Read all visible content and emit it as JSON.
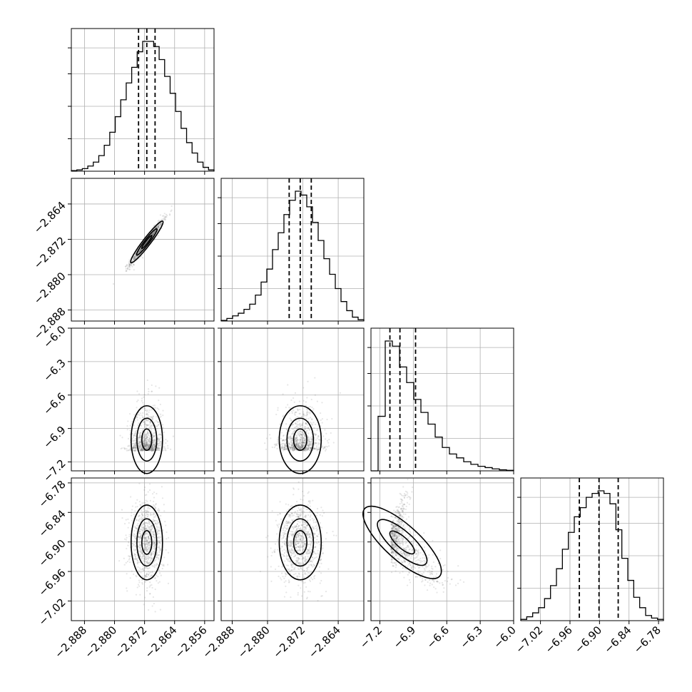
{
  "chart_data": {
    "type": "corner",
    "n_params": 4,
    "title": "",
    "parameters": [
      {
        "name": "",
        "range": [
          -2.8915,
          -2.8535
        ],
        "ticks": [
          -2.888,
          -2.88,
          -2.872,
          -2.864,
          -2.856
        ],
        "tick_labels": [
          "−2.888",
          "−2.880",
          "−2.872",
          "−2.864",
          "−2.856"
        ],
        "quantiles": [
          -2.8736,
          -2.8714,
          -2.8692
        ]
      },
      {
        "name": "",
        "range": [
          -2.8905,
          -2.8582
        ],
        "ticks": [
          -2.888,
          -2.88,
          -2.872,
          -2.864
        ],
        "tick_labels": [
          "−2.888",
          "−2.880",
          "−2.872",
          "−2.864"
        ],
        "quantiles": [
          -2.8751,
          -2.8726,
          -2.8701
        ]
      },
      {
        "name": "",
        "range": [
          -7.28,
          -6.0
        ],
        "ticks": [
          -7.2,
          -6.9,
          -6.6,
          -6.3,
          -6.0
        ],
        "tick_labels": [
          "−7.2",
          "−6.9",
          "−6.6",
          "−6.3",
          "−6.0"
        ],
        "quantiles": [
          -7.11,
          -7.02,
          -6.88
        ]
      },
      {
        "name": "",
        "range": [
          -7.06,
          -6.77
        ],
        "ticks": [
          -7.02,
          -6.96,
          -6.9,
          -6.84,
          -6.78
        ],
        "tick_labels": [
          "−7.02",
          "−6.96",
          "−6.90",
          "−6.84",
          "−6.78"
        ],
        "quantiles": [
          -6.941,
          -6.901,
          -6.862
        ]
      }
    ],
    "histograms": [
      [
        0.005,
        0.01,
        0.02,
        0.04,
        0.07,
        0.12,
        0.2,
        0.3,
        0.42,
        0.55,
        0.68,
        0.8,
        0.92,
        1.0,
        1.0,
        0.96,
        0.86,
        0.73,
        0.6,
        0.46,
        0.33,
        0.22,
        0.14,
        0.07,
        0.03,
        0.01
      ],
      [
        0.005,
        0.02,
        0.04,
        0.06,
        0.09,
        0.13,
        0.2,
        0.3,
        0.4,
        0.55,
        0.68,
        0.82,
        0.93,
        1.0,
        0.97,
        0.88,
        0.76,
        0.62,
        0.48,
        0.36,
        0.25,
        0.15,
        0.08,
        0.03,
        0.01
      ],
      [
        0.0,
        0.42,
        1.0,
        0.96,
        0.8,
        0.68,
        0.55,
        0.45,
        0.36,
        0.26,
        0.18,
        0.13,
        0.1,
        0.07,
        0.05,
        0.035,
        0.025,
        0.015,
        0.008,
        0.004
      ],
      [
        0.01,
        0.03,
        0.06,
        0.1,
        0.17,
        0.27,
        0.4,
        0.55,
        0.68,
        0.8,
        0.87,
        0.95,
        0.98,
        1.0,
        0.98,
        0.9,
        0.7,
        0.48,
        0.31,
        0.18,
        0.1,
        0.04,
        0.02,
        0.01
      ]
    ],
    "grid": true,
    "legend": "none"
  }
}
